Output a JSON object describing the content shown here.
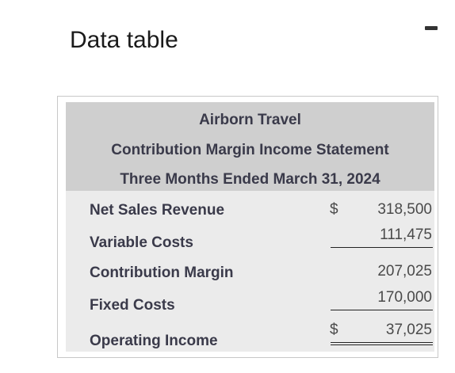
{
  "window": {
    "title": "Data table",
    "minimize_icon": "minus-icon"
  },
  "statement": {
    "company": "Airborn Travel",
    "name": "Contribution Margin Income Statement",
    "period": "Three Months Ended March 31, 2024",
    "rows": [
      {
        "label": "Net Sales Revenue",
        "currency": "$",
        "amount": "318,500"
      },
      {
        "label": "Variable Costs",
        "currency": "",
        "amount": "111,475"
      },
      {
        "label": "Contribution Margin",
        "currency": "",
        "amount": "207,025"
      },
      {
        "label": "Fixed Costs",
        "currency": "",
        "amount": "170,000"
      },
      {
        "label": "Operating Income",
        "currency": "$",
        "amount": "37,025"
      }
    ]
  }
}
